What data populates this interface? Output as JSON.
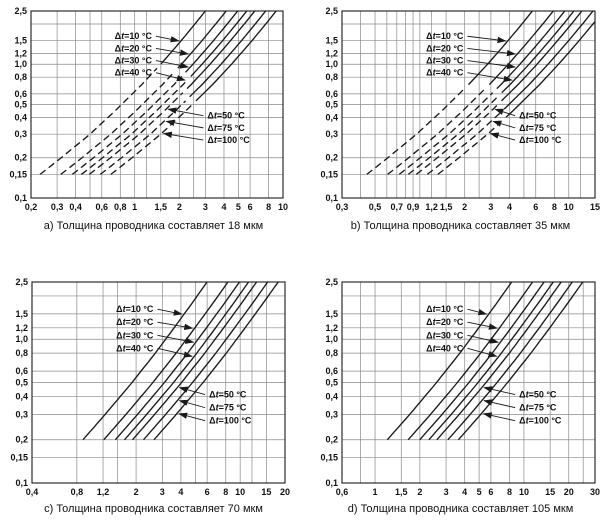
{
  "page": {
    "background": "#ffffff"
  },
  "chart_data": {
    "type": "line",
    "shared": {
      "y_min": 0.1,
      "y_max": 2.5,
      "y_ticks": [
        [
          2.5,
          "2,5"
        ],
        [
          2,
          ""
        ],
        [
          1.5,
          "1,5"
        ],
        [
          1.2,
          "1,2"
        ],
        [
          1,
          "1,0"
        ],
        [
          0.8,
          "0,8"
        ],
        [
          0.6,
          "0,6"
        ],
        [
          0.5,
          "0,5"
        ],
        [
          0.4,
          "0,4"
        ],
        [
          0.3,
          "0,3"
        ],
        [
          0.2,
          "0,2"
        ],
        [
          0.15,
          "0,15"
        ],
        [
          0.1,
          "0,1"
        ]
      ],
      "series_ratios": [
        1,
        1.38,
        1.65,
        1.9,
        2.15,
        2.55,
        3.0
      ],
      "curve_labels": [
        "Δt=10 °C",
        "Δt=20 °C",
        "Δt=30 °C",
        "Δt=40 °C",
        "Δt=50 °C",
        "Δt=75 °C",
        "Δt=100 °C"
      ],
      "annotations": {
        "upper": {
          "label_fx": 0.48,
          "label_fy": [
            0.135,
            0.2,
            0.265,
            0.33
          ],
          "tip_fy": [
            0.16,
            0.23,
            0.3,
            0.37
          ]
        },
        "lower": {
          "label_fx": 0.7,
          "label_fy": [
            0.56,
            0.625,
            0.69
          ],
          "tip_fy": [
            0.525,
            0.59,
            0.655
          ]
        }
      },
      "colors": {
        "grid": "#8a8a8a",
        "axis": "#1a1a1a",
        "curve": "#1a1a1a",
        "text": "#111111"
      }
    },
    "charts": [
      {
        "id": "a",
        "caption": "a) Толщина проводника составляет 18 мкм",
        "x_min": 0.2,
        "x_max": 10,
        "x_ticks": [
          [
            0.2,
            "0,2"
          ],
          [
            0.3,
            "0,3"
          ],
          [
            0.4,
            "0,4"
          ],
          [
            0.5,
            ""
          ],
          [
            0.6,
            "0,6"
          ],
          [
            0.8,
            "0,8"
          ],
          [
            1,
            "1"
          ],
          [
            1.2,
            ""
          ],
          [
            1.5,
            "1,5"
          ],
          [
            2,
            "2"
          ],
          [
            2.5,
            ""
          ],
          [
            3,
            "3"
          ],
          [
            4,
            "4"
          ],
          [
            5,
            "5"
          ],
          [
            6,
            "6"
          ],
          [
            8,
            "8"
          ],
          [
            10,
            "10"
          ]
        ],
        "base_curve": [
          [
            0.15,
            0.23
          ],
          [
            0.2,
            0.32
          ],
          [
            0.3,
            0.5
          ],
          [
            0.45,
            0.74
          ],
          [
            0.7,
            1.11
          ],
          [
            1,
            1.5
          ],
          [
            1.5,
            2.06
          ],
          [
            2,
            2.55
          ],
          [
            2.5,
            3
          ]
        ],
        "dash_below": [
          1,
          0.92,
          0.85,
          0.8,
          0.62,
          0.55,
          0.5
        ]
      },
      {
        "id": "b",
        "caption": "b) Толщина проводника составляет 35 мкм",
        "x_min": 0.3,
        "x_max": 15,
        "x_ticks": [
          [
            0.3,
            "0,3"
          ],
          [
            0.4,
            ""
          ],
          [
            0.5,
            "0,5"
          ],
          [
            0.6,
            ""
          ],
          [
            0.7,
            "0,7"
          ],
          [
            0.8,
            ""
          ],
          [
            0.9,
            "0,9"
          ],
          [
            1,
            ""
          ],
          [
            1.2,
            "1,2"
          ],
          [
            1.5,
            "1,5"
          ],
          [
            2,
            "2"
          ],
          [
            2.5,
            ""
          ],
          [
            3,
            "3"
          ],
          [
            4,
            "4"
          ],
          [
            5,
            ""
          ],
          [
            6,
            "6"
          ],
          [
            8,
            "8"
          ],
          [
            10,
            "10"
          ],
          [
            12,
            ""
          ],
          [
            15,
            "15"
          ]
        ],
        "base_curve": [
          [
            0.15,
            0.44
          ],
          [
            0.2,
            0.61
          ],
          [
            0.3,
            0.95
          ],
          [
            0.45,
            1.41
          ],
          [
            0.7,
            2.11
          ],
          [
            1,
            2.85
          ],
          [
            1.5,
            3.91
          ],
          [
            2,
            4.85
          ],
          [
            2.5,
            5.7
          ]
        ],
        "dash_below": [
          0.7,
          0.66,
          0.62,
          0.58,
          0.5,
          0.45,
          0.4
        ]
      },
      {
        "id": "c",
        "caption": "c) Толщина проводника составляет 70 мкм",
        "x_min": 0.4,
        "x_max": 20,
        "x_ticks": [
          [
            0.4,
            "0,4"
          ],
          [
            0.8,
            "0,8"
          ],
          [
            1.2,
            "1,2"
          ],
          [
            1.5,
            ""
          ],
          [
            2,
            "2"
          ],
          [
            3,
            "3"
          ],
          [
            4,
            "4"
          ],
          [
            5,
            ""
          ],
          [
            6,
            "6"
          ],
          [
            8,
            "8"
          ],
          [
            10,
            "10"
          ],
          [
            12,
            ""
          ],
          [
            15,
            "15"
          ],
          [
            20,
            "20"
          ]
        ],
        "base_curve": [
          [
            0.2,
            0.88
          ],
          [
            0.3,
            1.24
          ],
          [
            0.5,
            1.88
          ],
          [
            0.8,
            2.69
          ],
          [
            1.2,
            3.6
          ],
          [
            1.8,
            4.79
          ],
          [
            2.5,
            6
          ]
        ],
        "dash_below": null
      },
      {
        "id": "d",
        "caption": "d) Толщина проводника составляет 105 мкм",
        "x_min": 0.6,
        "x_max": 30,
        "x_ticks": [
          [
            0.6,
            "0,6"
          ],
          [
            0.8,
            ""
          ],
          [
            1,
            "1"
          ],
          [
            1.5,
            "1,5"
          ],
          [
            2,
            "2"
          ],
          [
            3,
            "3"
          ],
          [
            4,
            "4"
          ],
          [
            5,
            "5"
          ],
          [
            6,
            "6"
          ],
          [
            8,
            "8"
          ],
          [
            10,
            "10"
          ],
          [
            15,
            "15"
          ],
          [
            20,
            "20"
          ],
          [
            25,
            ""
          ],
          [
            30,
            "30"
          ]
        ],
        "base_curve": [
          [
            0.2,
            1.21
          ],
          [
            0.3,
            1.71
          ],
          [
            0.5,
            2.59
          ],
          [
            0.8,
            3.71
          ],
          [
            1.2,
            4.97
          ],
          [
            1.8,
            6.61
          ],
          [
            2.5,
            8.28
          ]
        ],
        "dash_below": null
      }
    ]
  }
}
